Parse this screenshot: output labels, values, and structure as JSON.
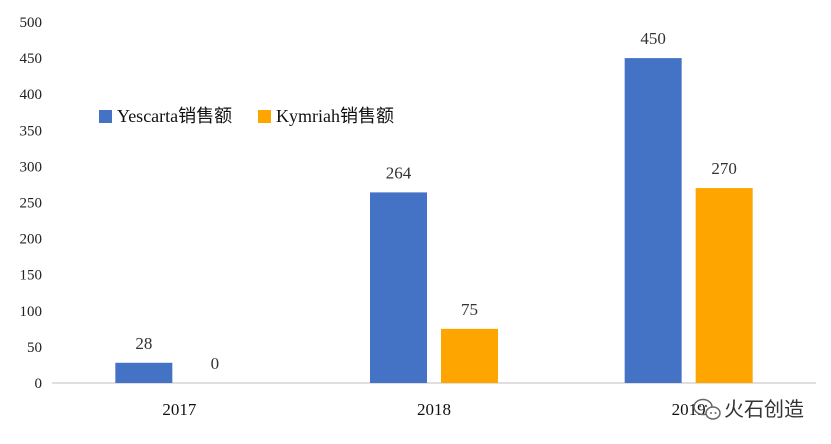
{
  "chart_data": {
    "type": "bar",
    "categories": [
      "2017",
      "2018",
      "2019"
    ],
    "series": [
      {
        "name": "Yescarta销售额",
        "values": [
          28,
          264,
          450
        ],
        "color": "#4472C4"
      },
      {
        "name": "Kymriah销售额",
        "values": [
          0,
          75,
          270
        ],
        "color": "#FFA500"
      }
    ],
    "ylim": [
      0,
      500
    ],
    "yticks": [
      0,
      50,
      100,
      150,
      200,
      250,
      300,
      350,
      400,
      450,
      500
    ],
    "grid": false,
    "legend_position": "upper-left",
    "data_labels": true,
    "title": "",
    "xlabel": "",
    "ylabel": ""
  },
  "watermark": {
    "icon": "wechat-icon",
    "text": "火石创造"
  }
}
